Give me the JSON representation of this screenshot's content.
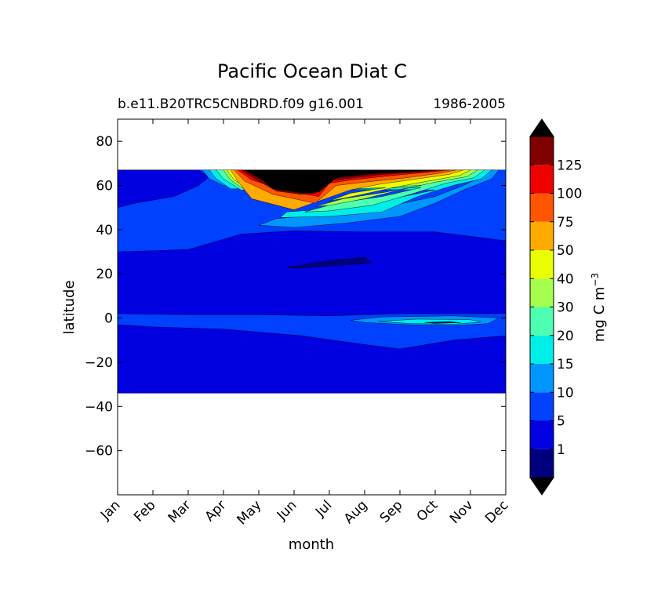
{
  "chart_data": {
    "type": "contourf",
    "title": "Pacific Ocean Diat C",
    "subtitle_left": "b.e11.B20TRC5CNBDRD.f09 g16.001",
    "subtitle_right": "1986-2005",
    "xlabel": "month",
    "ylabel": "latitude",
    "x_ticks": [
      "Jan",
      "Feb",
      "Mar",
      "Apr",
      "May",
      "Jun",
      "Jul",
      "Aug",
      "Sep",
      "Oct",
      "Nov",
      "Dec"
    ],
    "y_ticks": [
      80,
      60,
      40,
      20,
      0,
      -20,
      -40,
      -60
    ],
    "ylim": [
      -80,
      90
    ],
    "data_lat_range": [
      -34,
      67
    ],
    "colorbar": {
      "label": "mg C m",
      "label_superscript": "−3",
      "levels": [
        1,
        5,
        10,
        15,
        20,
        30,
        40,
        50,
        75,
        100,
        125
      ],
      "colors": [
        "#00007f",
        "#0000e0",
        "#0040ff",
        "#0096ff",
        "#00eeea",
        "#4dffb0",
        "#a6ff4d",
        "#eaff00",
        "#ffaa00",
        "#ff5500",
        "#ee0000",
        "#7f0000"
      ],
      "extend": "both",
      "under_color": "#000000",
      "over_color": "#000000"
    },
    "grid": false
  }
}
